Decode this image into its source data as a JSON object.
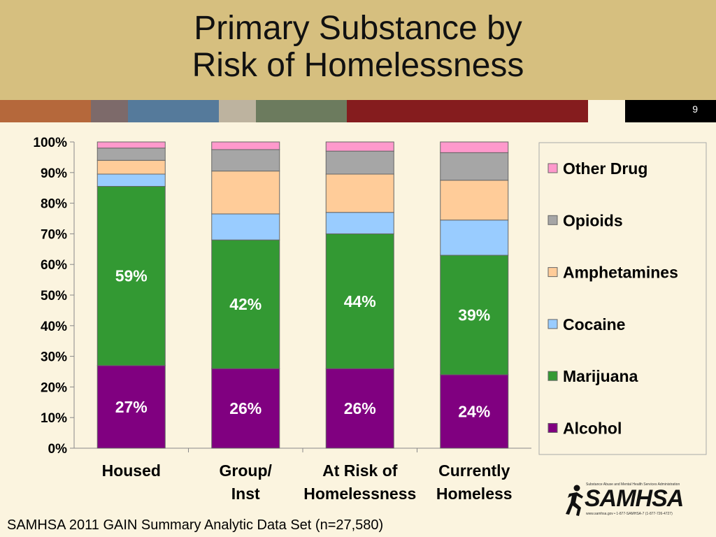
{
  "slide": {
    "title_line1": "Primary Substance by",
    "title_line2": "Risk of Homelessness",
    "slide_number": "9",
    "footnote": "SAMHSA 2011 GAIN Summary Analytic Data Set (n=27,580)",
    "logo": {
      "text": "SAMHSA",
      "subtitle": "Substance Abuse and Mental Health Services Administration",
      "url": "www.samhsa.gov • 1-877-SAMHSA-7 (1-877-726-4727)"
    },
    "strip_colors": [
      "#b5683b",
      "#7d6a6a",
      "#557a9b",
      "#bdb39f",
      "#6c7b5e",
      "#851c1e",
      "#fbf4df",
      "#000000"
    ]
  },
  "chart_data": {
    "type": "bar",
    "stacked": true,
    "categories": [
      [
        "Housed"
      ],
      [
        "Group/",
        "Inst"
      ],
      [
        "At Risk of",
        "Homelessness"
      ],
      [
        "Currently",
        "Homeless"
      ]
    ],
    "ylim": [
      0,
      100
    ],
    "yticks": [
      "0%",
      "10%",
      "20%",
      "30%",
      "40%",
      "50%",
      "60%",
      "70%",
      "80%",
      "90%",
      "100%"
    ],
    "grid": false,
    "legend_position": "right",
    "series": [
      {
        "name": "Alcohol",
        "color": "#800080",
        "values": [
          27,
          26,
          26,
          24
        ],
        "labels": [
          "27%",
          "26%",
          "26%",
          "24%"
        ]
      },
      {
        "name": "Marijuana",
        "color": "#339933",
        "values": [
          58.5,
          42,
          44,
          39
        ],
        "labels": [
          "59%",
          "42%",
          "44%",
          "39%"
        ]
      },
      {
        "name": "Cocaine",
        "color": "#99ccff",
        "values": [
          4,
          8.5,
          7,
          11.5
        ],
        "labels": [
          "",
          "",
          "",
          ""
        ]
      },
      {
        "name": "Amphetamines",
        "color": "#ffcc99",
        "values": [
          4.5,
          14,
          12.5,
          13
        ],
        "labels": [
          "",
          "",
          "",
          ""
        ]
      },
      {
        "name": "Opioids",
        "color": "#a6a6a6",
        "values": [
          4,
          7,
          7.5,
          9
        ],
        "labels": [
          "",
          "",
          "",
          ""
        ]
      },
      {
        "name": "Other Drug",
        "color": "#ff99cc",
        "values": [
          2,
          2.5,
          3,
          3.5
        ],
        "labels": [
          "",
          "",
          "",
          ""
        ]
      }
    ]
  }
}
